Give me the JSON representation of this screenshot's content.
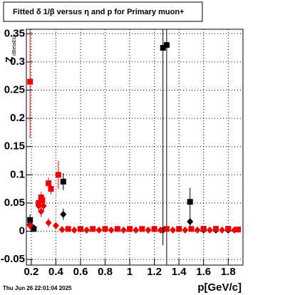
{
  "chart_data": {
    "type": "scatter",
    "title": "Fitted δ 1/β versus η and p for Primary muon+",
    "x_label": "p[GeV/c]",
    "y_label": "Z",
    "y_label_sub": "dBetaEta",
    "timestamp": "Thu Jun 26 22:01:04 2025",
    "xlim": [
      0.16,
      1.92
    ],
    "ylim": [
      -0.06,
      0.358
    ],
    "xticks": [
      0.2,
      0.4,
      0.6,
      0.8,
      1,
      1.2,
      1.4,
      1.6,
      1.8
    ],
    "yticks": [
      -0.05,
      0,
      0.05,
      0.1,
      0.15,
      0.2,
      0.25,
      0.3,
      0.35
    ],
    "grid": true,
    "series": [
      {
        "name": "black squares",
        "color": "#000000",
        "marker": "square",
        "x": [
          0.19,
          0.22,
          0.46,
          1.27,
          1.3,
          1.49,
          1.6,
          1.7,
          1.8
        ],
        "values": [
          0.02,
          0.004,
          0.088,
          0.325,
          0.33,
          0.052,
          0.004,
          0.004,
          0.004
        ],
        "errors": [
          0.01,
          0.004,
          0.015,
          0.35,
          0.4,
          0.025,
          0.003,
          0.003,
          0.003
        ]
      },
      {
        "name": "black diamonds",
        "color": "#000000",
        "marker": "diamond",
        "x": [
          0.19,
          0.22,
          0.46,
          1.27,
          1.49,
          1.6,
          1.7,
          1.8
        ],
        "values": [
          0.012,
          0.006,
          0.03,
          0.002,
          0.017,
          0.002,
          0.002,
          0.002
        ],
        "errors": [
          0.008,
          0.004,
          0.01,
          0.002,
          0.01,
          0.002,
          0.002,
          0.002
        ]
      },
      {
        "name": "red squares",
        "color": "#ee0000",
        "marker": "square",
        "x": [
          0.19,
          0.26,
          0.28,
          0.29,
          0.34,
          0.36,
          0.42,
          0.5,
          0.6,
          0.7,
          0.8,
          0.9,
          1.0,
          1.1,
          1.2,
          1.3,
          1.4,
          1.5,
          1.6,
          1.7,
          1.8,
          1.88
        ],
        "values": [
          0.265,
          0.05,
          0.06,
          0.055,
          0.085,
          0.075,
          0.1,
          0.004,
          0.004,
          0.004,
          0.004,
          0.004,
          0.004,
          0.004,
          0.004,
          0.004,
          0.004,
          0.004,
          0.004,
          0.004,
          0.004,
          0.003
        ],
        "errors": [
          0.1,
          0.01,
          0.01,
          0.01,
          0.01,
          0.01,
          0.025,
          0.003,
          0.003,
          0.003,
          0.003,
          0.003,
          0.003,
          0.003,
          0.003,
          0.003,
          0.003,
          0.003,
          0.003,
          0.003,
          0.003,
          0.003
        ]
      },
      {
        "name": "red diamonds",
        "color": "#ee0000",
        "marker": "diamond",
        "x": [
          0.19,
          0.26,
          0.28,
          0.3,
          0.34,
          0.4,
          0.45,
          0.55,
          0.65,
          0.75,
          0.85,
          0.95,
          1.05,
          1.15,
          1.25,
          1.35,
          1.45,
          1.55,
          1.65,
          1.75,
          1.85
        ],
        "values": [
          0.01,
          0.045,
          0.035,
          0.045,
          0.015,
          0.01,
          0.003,
          0.002,
          0.002,
          0.002,
          0.002,
          0.002,
          0.002,
          0.002,
          0.002,
          0.002,
          0.002,
          0.002,
          0.002,
          0.002,
          0.002
        ],
        "errors": [
          0.008,
          0.01,
          0.01,
          0.01,
          0.008,
          0.006,
          0.003,
          0.002,
          0.002,
          0.002,
          0.002,
          0.002,
          0.002,
          0.002,
          0.002,
          0.002,
          0.002,
          0.002,
          0.002,
          0.002,
          0.002
        ]
      }
    ]
  }
}
